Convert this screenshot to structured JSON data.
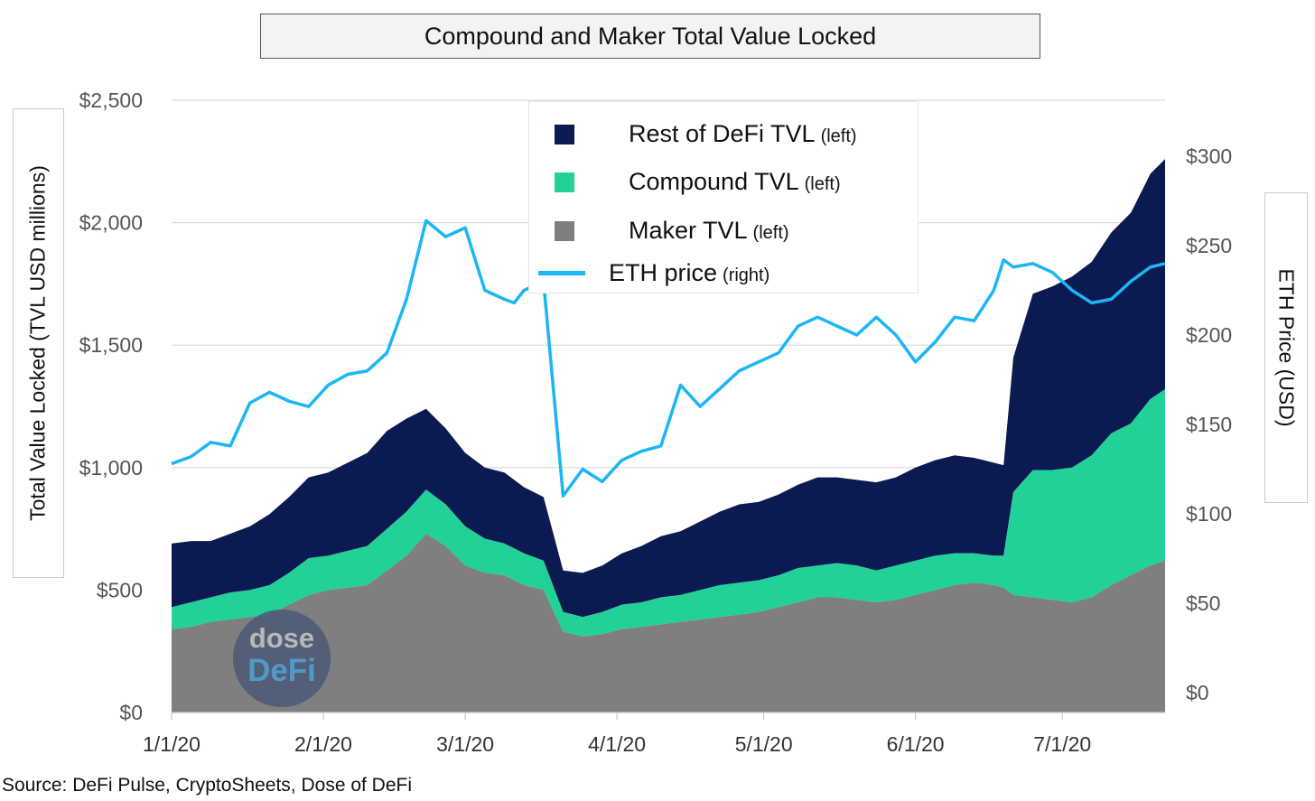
{
  "title": "Compound and Maker Total Value Locked",
  "source": "Source: DeFi Pulse, CryptoSheets, Dose of DeFi",
  "watermark": {
    "line1": "dose",
    "line2": "DeFi"
  },
  "colors": {
    "rest": "#0c1a52",
    "compound": "#22d197",
    "maker": "#7f7f7f",
    "eth": "#1cb5f5",
    "grid": "#d9d9d9"
  },
  "chart_data": {
    "type": "area",
    "title": "Compound and Maker Total Value Locked",
    "ylabel_left": "Total Value Locked (TVL USD millions)",
    "ylabel_right": "ETH Price (USD)",
    "xlabel": "",
    "ylim_left": [
      0,
      2500
    ],
    "ylim_right": [
      0,
      300
    ],
    "yticks_left": [
      "$0",
      "$500",
      "$1,000",
      "$1,500",
      "$2,000",
      "$2,500"
    ],
    "yticks_right": [
      "$0",
      "$50",
      "$100",
      "$150",
      "$200",
      "$250",
      "$300"
    ],
    "xticks": [
      "1/1/20",
      "2/1/20",
      "3/1/20",
      "4/1/20",
      "5/1/20",
      "6/1/20",
      "7/1/20"
    ],
    "grid": true,
    "legend_position": "top-center",
    "legend": [
      {
        "label": "Rest of DeFi TVL",
        "axis": "(left)",
        "kind": "area"
      },
      {
        "label": "Compound TVL",
        "axis": "(left)",
        "kind": "area"
      },
      {
        "label": "Maker TVL",
        "axis": "(left)",
        "kind": "area"
      },
      {
        "label": "ETH price",
        "axis": "(right)",
        "kind": "line"
      }
    ],
    "x_days": [
      0,
      4,
      8,
      12,
      16,
      20,
      24,
      28,
      32,
      36,
      40,
      44,
      48,
      52,
      56,
      60,
      64,
      68,
      70,
      72,
      76,
      80,
      84,
      88,
      92,
      96,
      100,
      104,
      108,
      112,
      116,
      120,
      124,
      128,
      132,
      136,
      140,
      144,
      148,
      152,
      156,
      160,
      164,
      168,
      170,
      172,
      176,
      180,
      184,
      188,
      192,
      196,
      200,
      203
    ],
    "series": [
      {
        "name": "Maker TVL",
        "values": [
          340,
          350,
          370,
          380,
          390,
          400,
          440,
          480,
          500,
          510,
          520,
          580,
          640,
          730,
          680,
          600,
          570,
          560,
          540,
          520,
          500,
          330,
          310,
          320,
          340,
          350,
          360,
          370,
          380,
          390,
          400,
          410,
          430,
          450,
          470,
          470,
          460,
          450,
          460,
          480,
          500,
          520,
          530,
          520,
          510,
          480,
          470,
          460,
          450,
          470,
          520,
          560,
          600,
          620
        ]
      },
      {
        "name": "Compound TVL",
        "values": [
          90,
          100,
          100,
          110,
          110,
          120,
          130,
          150,
          140,
          150,
          160,
          170,
          180,
          180,
          170,
          160,
          140,
          130,
          130,
          130,
          120,
          80,
          80,
          90,
          100,
          100,
          110,
          110,
          120,
          130,
          130,
          130,
          130,
          140,
          130,
          140,
          140,
          130,
          140,
          140,
          140,
          130,
          120,
          120,
          130,
          420,
          520,
          530,
          550,
          580,
          620,
          620,
          680,
          700
        ]
      },
      {
        "name": "Rest of DeFi TVL",
        "values": [
          260,
          250,
          230,
          240,
          260,
          290,
          310,
          330,
          340,
          360,
          380,
          400,
          380,
          330,
          310,
          300,
          290,
          290,
          280,
          270,
          260,
          170,
          180,
          190,
          210,
          230,
          250,
          260,
          280,
          300,
          320,
          320,
          330,
          340,
          360,
          350,
          350,
          360,
          360,
          380,
          390,
          400,
          390,
          380,
          370,
          550,
          720,
          750,
          780,
          790,
          820,
          860,
          920,
          940
        ]
      },
      {
        "name": "ETH price",
        "values": [
          128,
          132,
          140,
          138,
          162,
          168,
          163,
          160,
          172,
          178,
          180,
          190,
          220,
          264,
          255,
          260,
          225,
          220,
          218,
          225,
          230,
          110,
          125,
          118,
          130,
          135,
          138,
          172,
          160,
          170,
          180,
          185,
          190,
          205,
          210,
          205,
          200,
          210,
          200,
          185,
          196,
          210,
          208,
          225,
          242,
          238,
          240,
          235,
          225,
          218,
          220,
          230,
          238,
          240
        ]
      }
    ]
  }
}
